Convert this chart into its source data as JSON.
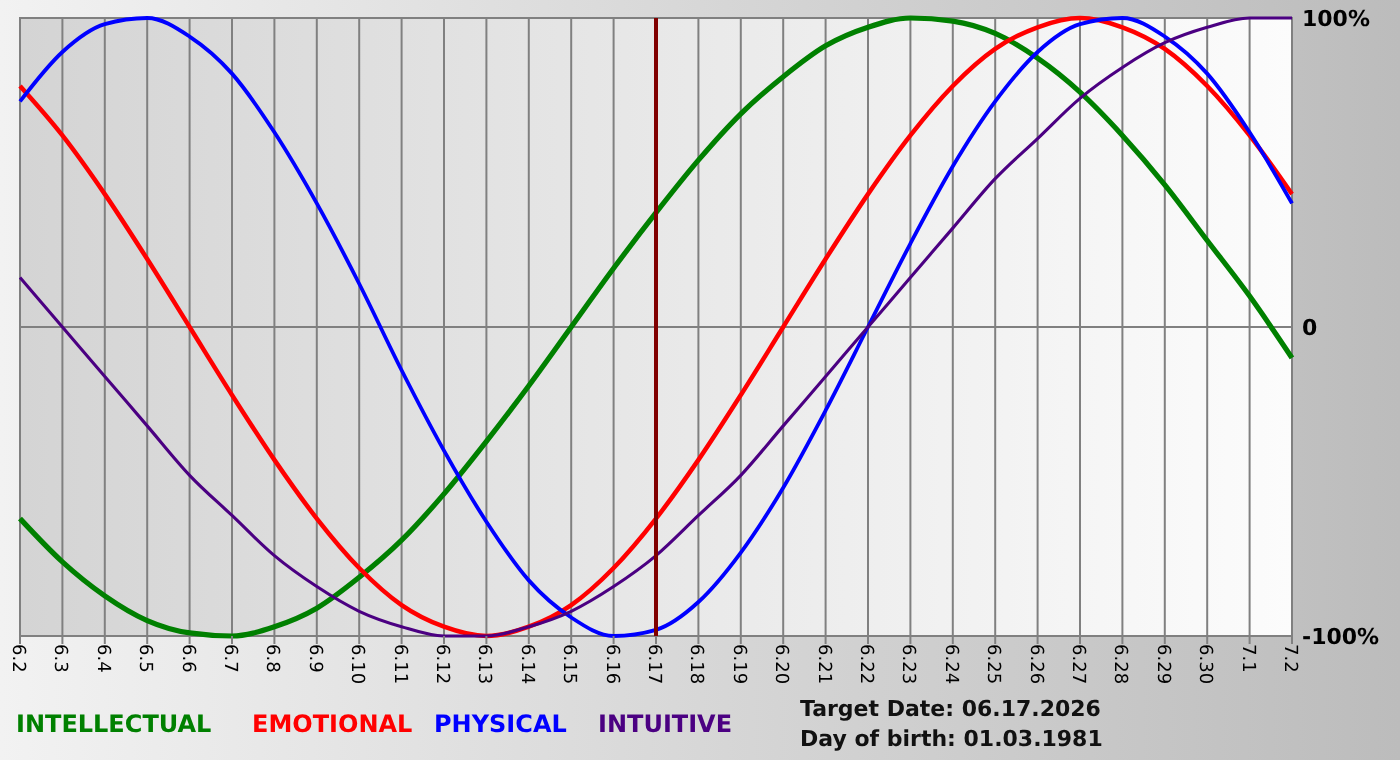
{
  "chart_data": {
    "type": "line",
    "categories": [
      "6.2",
      "6.3",
      "6.4",
      "6.5",
      "6.6",
      "6.7",
      "6.8",
      "6.9",
      "6.10",
      "6.11",
      "6.12",
      "6.13",
      "6.14",
      "6.15",
      "6.16",
      "6.17",
      "6.18",
      "6.19",
      "6.20",
      "6.21",
      "6.22",
      "6.23",
      "6.24",
      "6.25",
      "6.26",
      "6.27",
      "6.28",
      "6.29",
      "6.30",
      "7.1",
      "7.2"
    ],
    "series": [
      {
        "name": "INTELLECTUAL",
        "color": "#008000",
        "values": [
          -62,
          -76,
          -87,
          -95,
          -99,
          -100,
          -97,
          -91,
          -81,
          -69,
          -54,
          -37,
          -19,
          0,
          19,
          37,
          54,
          69,
          81,
          91,
          97,
          100,
          99,
          95,
          87,
          76,
          62,
          46,
          28,
          10,
          -10
        ]
      },
      {
        "name": "EMOTIONAL",
        "color": "#ff0000",
        "values": [
          78,
          62,
          43,
          22,
          0,
          -22,
          -43,
          -62,
          -78,
          -90,
          -97,
          -100,
          -97,
          -90,
          -78,
          -62,
          -43,
          -22,
          0,
          22,
          43,
          62,
          78,
          90,
          97,
          100,
          97,
          90,
          78,
          62,
          43
        ]
      },
      {
        "name": "PHYSICAL",
        "color": "#0000ff",
        "values": [
          73,
          89,
          98,
          100,
          94,
          82,
          63,
          40,
          14,
          -14,
          -40,
          -63,
          -82,
          -94,
          -100,
          -98,
          -89,
          -73,
          -52,
          -27,
          0,
          27,
          52,
          73,
          89,
          98,
          100,
          94,
          82,
          63,
          40
        ]
      },
      {
        "name": "INTUITIVE",
        "color": "#4b0082",
        "values": [
          16,
          0,
          -16,
          -32,
          -48,
          -61,
          -74,
          -84,
          -92,
          -97,
          -100,
          -100,
          -97,
          -92,
          -84,
          -74,
          -61,
          -48,
          -32,
          -16,
          0,
          16,
          32,
          48,
          61,
          74,
          84,
          92,
          97,
          100,
          100
        ]
      }
    ],
    "ylim": [
      -100,
      100
    ],
    "yticks": [
      {
        "value": 100,
        "label": "100%"
      },
      0,
      {
        "value": -100,
        "label": "-100%"
      }
    ],
    "grid": true,
    "legend": "bottom left",
    "ref_lines": [
      {
        "axis": "x",
        "value": "6.17",
        "color": "#800000"
      }
    ],
    "annotations": [
      "Target Date: 06.17.2026",
      "Day of birth: 01.03.1981"
    ]
  }
}
